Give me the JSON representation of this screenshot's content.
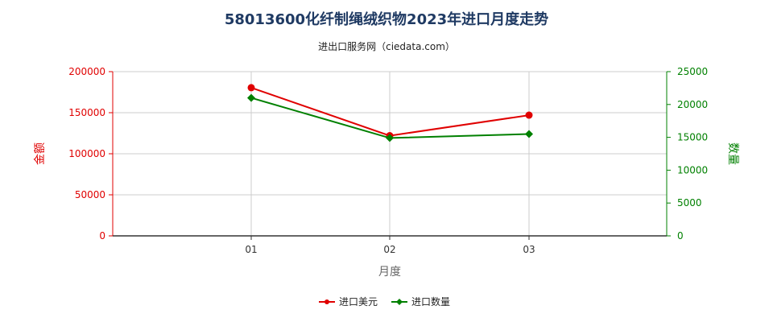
{
  "title": "58013600化纤制绳绒织物2023年进口月度走势",
  "subtitle": "进出口服务网（ciedata.com）",
  "colors": {
    "left_axis": "#e00000",
    "right_axis": "#008000",
    "grid": "#cccccc",
    "axis": "#333333"
  },
  "chart_data": {
    "type": "line",
    "title": "58013600化纤制绳绒织物2023年进口月度走势",
    "xlabel": "月度",
    "ylabel_left": "金额",
    "ylabel_right": "数量",
    "categories": [
      "01",
      "02",
      "03"
    ],
    "ylim_left": [
      0,
      200000
    ],
    "ylim_right": [
      0,
      25000
    ],
    "left_ticks": [
      "0",
      "50000",
      "100000",
      "150000",
      "200000"
    ],
    "right_ticks": [
      "0",
      "5000",
      "10000",
      "15000",
      "20000",
      "25000"
    ],
    "grid": true,
    "legend_position": "bottom",
    "series": [
      {
        "name": "进口美元",
        "axis": "left",
        "color": "#e00000",
        "marker": "circle",
        "values": [
          180500,
          122000,
          147000
        ]
      },
      {
        "name": "进口数量",
        "axis": "right",
        "color": "#008000",
        "marker": "diamond",
        "values": [
          21000,
          14900,
          15500
        ]
      }
    ]
  }
}
